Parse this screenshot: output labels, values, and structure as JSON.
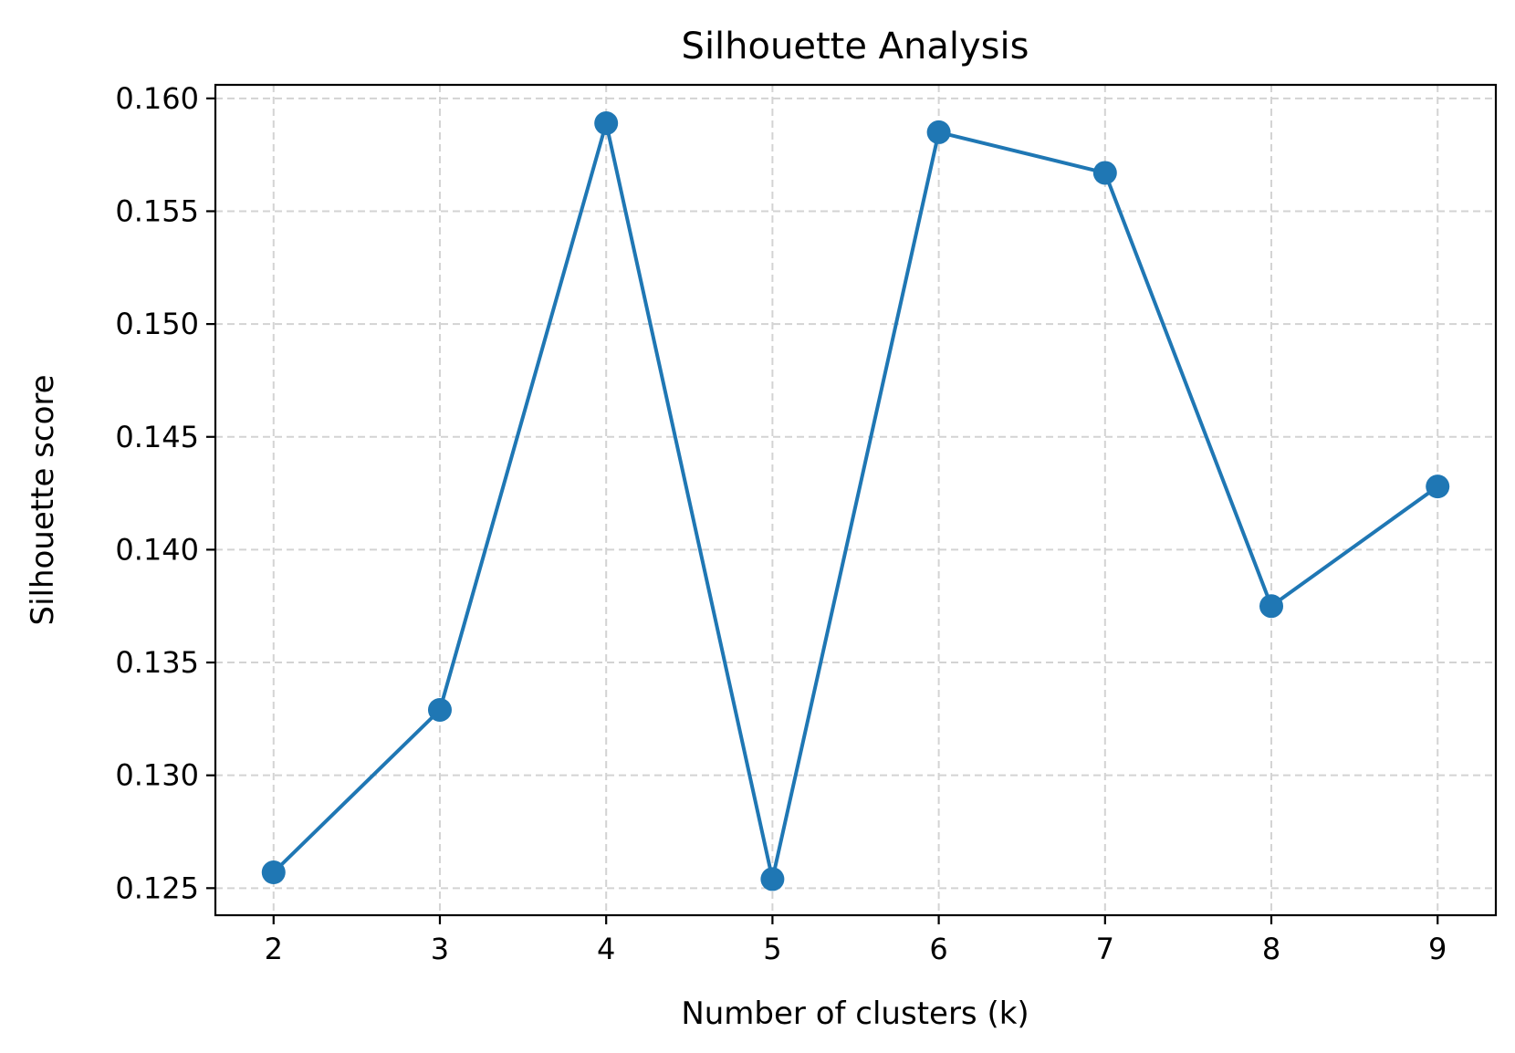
{
  "chart_data": {
    "type": "line",
    "title": "Silhouette Analysis",
    "xlabel": "Number of clusters (k)",
    "ylabel": "Silhouette score",
    "x": [
      2,
      3,
      4,
      5,
      6,
      7,
      8,
      9
    ],
    "y": [
      0.1257,
      0.1329,
      0.1589,
      0.1254,
      0.1585,
      0.1567,
      0.1375,
      0.1428
    ],
    "xticks": [
      "2",
      "3",
      "4",
      "5",
      "6",
      "7",
      "8",
      "9"
    ],
    "yticks": [
      "0.125",
      "0.130",
      "0.135",
      "0.140",
      "0.145",
      "0.150",
      "0.155",
      "0.160"
    ],
    "xlim": [
      1.65,
      9.35
    ],
    "ylim": [
      0.1238,
      0.1606
    ],
    "grid": true,
    "color": "#1f77b4",
    "marker": "circle"
  }
}
